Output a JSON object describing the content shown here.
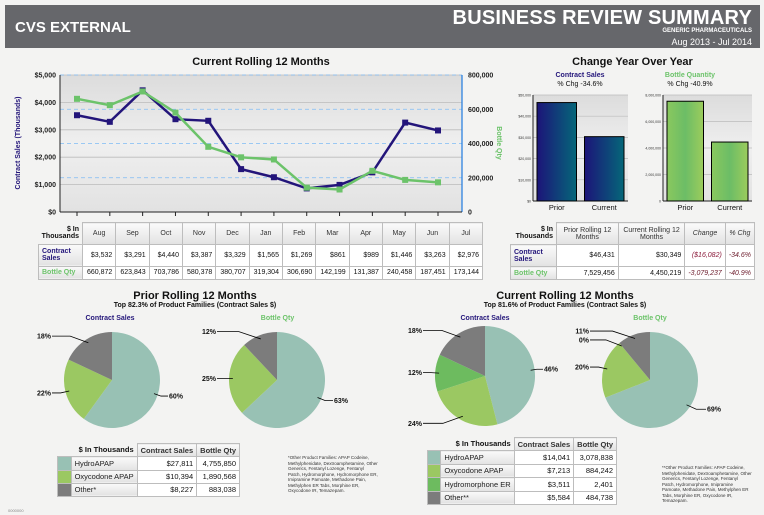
{
  "header": {
    "left": "CVS EXTERNAL",
    "title": "BUSINESS REVIEW SUMMARY",
    "subtitle": "GENERIC PHARMACEUTICALS",
    "date_range": "Aug 2013 - Jul 2014"
  },
  "colors": {
    "navy": "#23157a",
    "green": "#6cc36a",
    "hydro": "#98c1b4",
    "oxy": "#9bc862",
    "hydromorphone": "#6dbb5f",
    "other": "#7c7c7c",
    "header": "#66676b"
  },
  "chart_data": [
    {
      "type": "line",
      "title": "Current Rolling 12 Months",
      "ylabel": "Contract Sales (Thousands)",
      "y2label": "Bottle Qty",
      "categories": [
        "Aug",
        "Sep",
        "Oct",
        "Nov",
        "Dec",
        "Jan",
        "Feb",
        "Mar",
        "Apr",
        "May",
        "Jun",
        "Jul"
      ],
      "ylim": [
        0,
        5000
      ],
      "yticks": [
        "$0",
        "$1,000",
        "$2,000",
        "$3,000",
        "$4,000",
        "$5,000"
      ],
      "y2lim": [
        0,
        800000
      ],
      "y2ticks": [
        "0",
        "200,000",
        "400,000",
        "600,000",
        "800,000"
      ],
      "series": [
        {
          "name": "Contract Sales",
          "axis": "left",
          "values": [
            3532,
            3291,
            4440,
            3387,
            3329,
            1565,
            1269,
            861,
            989,
            1446,
            3263,
            2976
          ]
        },
        {
          "name": "Bottle Qty",
          "axis": "right",
          "values": [
            660872,
            623843,
            703786,
            580378,
            380707,
            319304,
            306690,
            142199,
            131387,
            240458,
            187451,
            173144
          ]
        }
      ]
    },
    {
      "type": "bar",
      "title": "Contract Sales",
      "subtitle": "% Chg -34.6%",
      "categories": [
        "Prior",
        "Current"
      ],
      "values": [
        46431,
        30349
      ],
      "ylim": [
        0,
        50000
      ],
      "yticks": [
        "$0",
        "$10,000",
        "$20,000",
        "$30,000",
        "$40,000",
        "$50,000"
      ]
    },
    {
      "type": "bar",
      "title": "Bottle Quantity",
      "subtitle": "% Chg -40.9%",
      "categories": [
        "Prior",
        "Current"
      ],
      "values": [
        7529456,
        4450219
      ],
      "ylim": [
        0,
        8000000
      ],
      "yticks": [
        "0",
        "2,000,000",
        "4,000,000",
        "6,000,000",
        "8,000,000"
      ]
    },
    {
      "type": "pie",
      "title": "Contract Sales",
      "labels": [
        "HydroAPAP",
        "Oxycodone APAP",
        "Other*"
      ],
      "values": [
        60,
        22,
        18
      ]
    },
    {
      "type": "pie",
      "title": "Bottle Qty",
      "labels": [
        "HydroAPAP",
        "Oxycodone APAP",
        "Other*"
      ],
      "values": [
        63,
        25,
        12
      ]
    },
    {
      "type": "pie",
      "title": "Contract Sales",
      "labels": [
        "HydroAPAP",
        "Oxycodone APAP",
        "Hydromorphone ER",
        "Other**"
      ],
      "values": [
        46,
        24,
        12,
        18
      ]
    },
    {
      "type": "pie",
      "title": "Bottle Qty",
      "labels": [
        "HydroAPAP",
        "Oxycodone APAP",
        "Hydromorphone ER",
        "Other**"
      ],
      "values": [
        69,
        20,
        0,
        11
      ]
    }
  ],
  "monthly_table": {
    "corner": "$ In Thousands",
    "rows": [
      {
        "label": "Contract Sales",
        "values": [
          "$3,532",
          "$3,291",
          "$4,440",
          "$3,387",
          "$3,329",
          "$1,565",
          "$1,269",
          "$861",
          "$989",
          "$1,446",
          "$3,263",
          "$2,976"
        ]
      },
      {
        "label": "Bottle Qty",
        "values": [
          "660,872",
          "623,843",
          "703,786",
          "580,378",
          "380,707",
          "319,304",
          "306,690",
          "142,199",
          "131,387",
          "240,458",
          "187,451",
          "173,144"
        ]
      }
    ]
  },
  "yoy": {
    "title": "Change Year Over Year",
    "table": {
      "corner": "$ In Thousands",
      "headers": [
        "Prior Rolling 12 Months",
        "Current Rolling 12 Months",
        "Change",
        "% Chg"
      ],
      "rows": [
        {
          "label": "Contract Sales",
          "values": [
            "$46,431",
            "$30,349",
            "($16,082)",
            "-34.6%"
          ]
        },
        {
          "label": "Bottle Qty",
          "values": [
            "7,529,456",
            "4,450,219",
            "-3,079,237",
            "-40.9%"
          ]
        }
      ]
    }
  },
  "prior": {
    "title": "Prior Rolling 12 Months",
    "subtitle": "Top 82.3% of Product Families (Contract Sales $)",
    "table": {
      "corner": "$ In Thousands",
      "headers": [
        "Contract Sales",
        "Bottle Qty"
      ],
      "rows": [
        {
          "label": "HydroAPAP",
          "values": [
            "$27,811",
            "4,755,850"
          ]
        },
        {
          "label": "Oxycodone APAP",
          "values": [
            "$10,394",
            "1,890,568"
          ]
        },
        {
          "label": "Other*",
          "values": [
            "$8,227",
            "883,038"
          ]
        }
      ]
    },
    "note": "*Other Product Families: APAP Codeine, Methylphenidate, Dextroamphetamine, Other Generics, Fentanyl Lozenge, Fentanyl Patch, Hydromorphone, Hydromorphone ER, Imipramine Pamoate, Methadone Pain, Methylphen ER Tabs, Morphine ER, Oxycodone IR, Temazepam."
  },
  "current": {
    "title": "Current Rolling 12 Months",
    "subtitle": "Top 81.6% of Product Families (Contract Sales $)",
    "table": {
      "corner": "$ In Thousands",
      "headers": [
        "Contract Sales",
        "Bottle Qty"
      ],
      "rows": [
        {
          "label": "HydroAPAP",
          "values": [
            "$14,041",
            "3,078,838"
          ]
        },
        {
          "label": "Oxycodone APAP",
          "values": [
            "$7,213",
            "884,242"
          ]
        },
        {
          "label": "Hydromorphone ER",
          "values": [
            "$3,511",
            "2,401"
          ]
        },
        {
          "label": "Other**",
          "values": [
            "$5,584",
            "484,738"
          ]
        }
      ]
    },
    "note": "**Other Product Families: APAP Codeine, Methylphenidate, Dextroamphetamine, Other Generics, Fentanyl Lozenge, Fentanyl Patch, Hydromorphone, Imipramine Pamoate, Methadone Pain, Methylphen ER Tabs, Morphine ER, Oxycodone IR, Temazepam."
  },
  "footer_code": "0000000"
}
